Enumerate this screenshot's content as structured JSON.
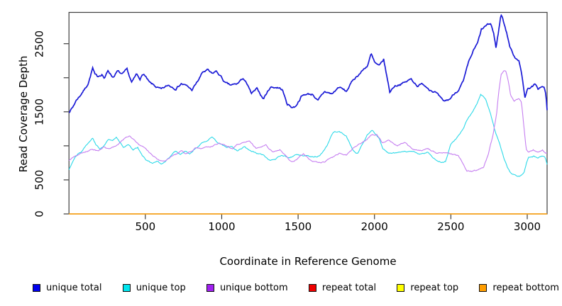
{
  "chart_data": {
    "type": "line",
    "title": "",
    "xlabel": "Coordinate in Reference Genome",
    "ylabel": "Read Coverage Depth",
    "xlim": [
      0,
      3130
    ],
    "ylim": [
      0,
      2960
    ],
    "grid": false,
    "legend_position": "bottom",
    "x_ticks": {
      "values": [
        500,
        1000,
        1500,
        2000,
        2500,
        3000
      ],
      "labels": [
        "500",
        "1000",
        "1500",
        "2000",
        "2500",
        "3000"
      ]
    },
    "y_ticks": {
      "values": [
        0,
        500,
        1000,
        1500,
        2000,
        2500
      ],
      "labels": [
        "0",
        "500",
        "",
        "1500",
        "",
        "2500"
      ]
    },
    "axis_color": "#3d3d3d",
    "background": "#ffffff",
    "series": [
      {
        "name": "unique total",
        "color": "#0000ee",
        "line_color": "#1a1ad6",
        "width": 1.7,
        "jitter": 24,
        "points": [
          [
            0,
            1500
          ],
          [
            25,
            1570
          ],
          [
            50,
            1680
          ],
          [
            70,
            1730
          ],
          [
            90,
            1800
          ],
          [
            110,
            1855
          ],
          [
            125,
            1920
          ],
          [
            140,
            2025
          ],
          [
            155,
            2145
          ],
          [
            170,
            2040
          ],
          [
            186,
            2010
          ],
          [
            217,
            2060
          ],
          [
            233,
            1990
          ],
          [
            256,
            2110
          ],
          [
            287,
            2010
          ],
          [
            318,
            2095
          ],
          [
            349,
            2040
          ],
          [
            380,
            2110
          ],
          [
            411,
            1920
          ],
          [
            442,
            2045
          ],
          [
            465,
            1990
          ],
          [
            488,
            2060
          ],
          [
            527,
            1920
          ],
          [
            566,
            1870
          ],
          [
            605,
            1820
          ],
          [
            651,
            1885
          ],
          [
            698,
            1850
          ],
          [
            736,
            1920
          ],
          [
            775,
            1870
          ],
          [
            806,
            1820
          ],
          [
            845,
            1955
          ],
          [
            876,
            2080
          ],
          [
            907,
            2110
          ],
          [
            938,
            2045
          ],
          [
            961,
            2095
          ],
          [
            992,
            2025
          ],
          [
            1023,
            1920
          ],
          [
            1054,
            1885
          ],
          [
            1101,
            1900
          ],
          [
            1125,
            1970
          ],
          [
            1156,
            1960
          ],
          [
            1194,
            1760
          ],
          [
            1233,
            1830
          ],
          [
            1272,
            1690
          ],
          [
            1318,
            1865
          ],
          [
            1365,
            1860
          ],
          [
            1396,
            1830
          ],
          [
            1427,
            1620
          ],
          [
            1458,
            1570
          ],
          [
            1481,
            1575
          ],
          [
            1520,
            1725
          ],
          [
            1551,
            1760
          ],
          [
            1598,
            1760
          ],
          [
            1629,
            1655
          ],
          [
            1675,
            1795
          ],
          [
            1722,
            1760
          ],
          [
            1768,
            1865
          ],
          [
            1815,
            1795
          ],
          [
            1861,
            1970
          ],
          [
            1892,
            2040
          ],
          [
            1923,
            2110
          ],
          [
            1954,
            2180
          ],
          [
            1978,
            2350
          ],
          [
            2001,
            2215
          ],
          [
            2032,
            2160
          ],
          [
            2060,
            2265
          ],
          [
            2100,
            1790
          ],
          [
            2130,
            1880
          ],
          [
            2160,
            1905
          ],
          [
            2200,
            1930
          ],
          [
            2240,
            1980
          ],
          [
            2280,
            1890
          ],
          [
            2320,
            1905
          ],
          [
            2360,
            1840
          ],
          [
            2400,
            1790
          ],
          [
            2450,
            1640
          ],
          [
            2490,
            1680
          ],
          [
            2520,
            1760
          ],
          [
            2550,
            1830
          ],
          [
            2583,
            1950
          ],
          [
            2614,
            2200
          ],
          [
            2647,
            2390
          ],
          [
            2675,
            2500
          ],
          [
            2700,
            2700
          ],
          [
            2731,
            2760
          ],
          [
            2762,
            2790
          ],
          [
            2780,
            2650
          ],
          [
            2795,
            2440
          ],
          [
            2810,
            2650
          ],
          [
            2828,
            2930
          ],
          [
            2840,
            2870
          ],
          [
            2855,
            2750
          ],
          [
            2870,
            2620
          ],
          [
            2885,
            2470
          ],
          [
            2900,
            2380
          ],
          [
            2920,
            2300
          ],
          [
            2945,
            2270
          ],
          [
            2962,
            2070
          ],
          [
            2985,
            1720
          ],
          [
            3005,
            1850
          ],
          [
            3030,
            1870
          ],
          [
            3050,
            1900
          ],
          [
            3070,
            1830
          ],
          [
            3090,
            1870
          ],
          [
            3110,
            1860
          ],
          [
            3122,
            1750
          ],
          [
            3130,
            1520
          ]
        ]
      },
      {
        "name": "unique top",
        "color": "#00e5ee",
        "line_color": "#2bd9e8",
        "width": 1.1,
        "jitter": 14,
        "points": [
          [
            0,
            645
          ],
          [
            16,
            710
          ],
          [
            39,
            815
          ],
          [
            62,
            885
          ],
          [
            85,
            920
          ],
          [
            108,
            990
          ],
          [
            132,
            1060
          ],
          [
            155,
            1110
          ],
          [
            178,
            1010
          ],
          [
            202,
            955
          ],
          [
            225,
            990
          ],
          [
            256,
            1095
          ],
          [
            287,
            1075
          ],
          [
            310,
            1130
          ],
          [
            333,
            1060
          ],
          [
            357,
            975
          ],
          [
            388,
            1025
          ],
          [
            419,
            940
          ],
          [
            450,
            975
          ],
          [
            481,
            850
          ],
          [
            512,
            780
          ],
          [
            543,
            745
          ],
          [
            574,
            780
          ],
          [
            605,
            730
          ],
          [
            636,
            780
          ],
          [
            667,
            850
          ],
          [
            698,
            920
          ],
          [
            729,
            870
          ],
          [
            760,
            920
          ],
          [
            791,
            885
          ],
          [
            822,
            955
          ],
          [
            853,
            990
          ],
          [
            884,
            1060
          ],
          [
            915,
            1095
          ],
          [
            938,
            1130
          ],
          [
            969,
            1060
          ],
          [
            1000,
            1025
          ],
          [
            1031,
            975
          ],
          [
            1062,
            990
          ],
          [
            1101,
            925
          ],
          [
            1148,
            980
          ],
          [
            1210,
            910
          ],
          [
            1272,
            860
          ],
          [
            1303,
            790
          ],
          [
            1349,
            790
          ],
          [
            1396,
            860
          ],
          [
            1442,
            825
          ],
          [
            1489,
            860
          ],
          [
            1551,
            860
          ],
          [
            1598,
            825
          ],
          [
            1644,
            860
          ],
          [
            1690,
            1000
          ],
          [
            1713,
            1135
          ],
          [
            1737,
            1205
          ],
          [
            1768,
            1205
          ],
          [
            1815,
            1135
          ],
          [
            1861,
            925
          ],
          [
            1892,
            890
          ],
          [
            1923,
            1030
          ],
          [
            1954,
            1170
          ],
          [
            1985,
            1225
          ],
          [
            2010,
            1160
          ],
          [
            2032,
            1100
          ],
          [
            2055,
            960
          ],
          [
            2090,
            900
          ],
          [
            2150,
            900
          ],
          [
            2200,
            930
          ],
          [
            2250,
            905
          ],
          [
            2300,
            880
          ],
          [
            2350,
            900
          ],
          [
            2400,
            790
          ],
          [
            2435,
            760
          ],
          [
            2466,
            770
          ],
          [
            2500,
            1020
          ],
          [
            2535,
            1100
          ],
          [
            2559,
            1160
          ],
          [
            2605,
            1370
          ],
          [
            2636,
            1475
          ],
          [
            2670,
            1620
          ],
          [
            2695,
            1770
          ],
          [
            2714,
            1720
          ],
          [
            2730,
            1670
          ],
          [
            2760,
            1465
          ],
          [
            2784,
            1255
          ],
          [
            2799,
            1155
          ],
          [
            2822,
            1015
          ],
          [
            2846,
            840
          ],
          [
            2869,
            685
          ],
          [
            2892,
            595
          ],
          [
            2920,
            560
          ],
          [
            2950,
            555
          ],
          [
            2978,
            600
          ],
          [
            2993,
            735
          ],
          [
            3008,
            825
          ],
          [
            3040,
            855
          ],
          [
            3070,
            825
          ],
          [
            3100,
            855
          ],
          [
            3118,
            840
          ],
          [
            3130,
            720
          ]
        ]
      },
      {
        "name": "unique bottom",
        "color": "#a020f0",
        "line_color": "#c57ef0",
        "width": 1.1,
        "jitter": 14,
        "points": [
          [
            0,
            785
          ],
          [
            31,
            835
          ],
          [
            70,
            885
          ],
          [
            108,
            905
          ],
          [
            147,
            955
          ],
          [
            186,
            920
          ],
          [
            225,
            975
          ],
          [
            264,
            940
          ],
          [
            302,
            990
          ],
          [
            333,
            1045
          ],
          [
            364,
            1110
          ],
          [
            395,
            1150
          ],
          [
            426,
            1095
          ],
          [
            457,
            1025
          ],
          [
            488,
            975
          ],
          [
            519,
            920
          ],
          [
            550,
            850
          ],
          [
            581,
            800
          ],
          [
            612,
            765
          ],
          [
            643,
            800
          ],
          [
            674,
            850
          ],
          [
            705,
            885
          ],
          [
            736,
            920
          ],
          [
            767,
            885
          ],
          [
            798,
            920
          ],
          [
            829,
            975
          ],
          [
            860,
            955
          ],
          [
            891,
            990
          ],
          [
            922,
            975
          ],
          [
            953,
            1010
          ],
          [
            984,
            1045
          ],
          [
            1015,
            1025
          ],
          [
            1046,
            990
          ],
          [
            1070,
            960
          ],
          [
            1101,
            1020
          ],
          [
            1148,
            1065
          ],
          [
            1179,
            1065
          ],
          [
            1225,
            960
          ],
          [
            1287,
            1015
          ],
          [
            1334,
            910
          ],
          [
            1380,
            945
          ],
          [
            1427,
            825
          ],
          [
            1458,
            755
          ],
          [
            1504,
            825
          ],
          [
            1535,
            890
          ],
          [
            1582,
            790
          ],
          [
            1629,
            755
          ],
          [
            1675,
            755
          ],
          [
            1722,
            825
          ],
          [
            1768,
            890
          ],
          [
            1815,
            860
          ],
          [
            1861,
            960
          ],
          [
            1907,
            1030
          ],
          [
            1954,
            1100
          ],
          [
            1985,
            1170
          ],
          [
            2016,
            1170
          ],
          [
            2050,
            1050
          ],
          [
            2090,
            1080
          ],
          [
            2150,
            1000
          ],
          [
            2200,
            1050
          ],
          [
            2250,
            950
          ],
          [
            2300,
            930
          ],
          [
            2350,
            950
          ],
          [
            2400,
            900
          ],
          [
            2450,
            900
          ],
          [
            2500,
            880
          ],
          [
            2550,
            850
          ],
          [
            2605,
            640
          ],
          [
            2640,
            620
          ],
          [
            2680,
            650
          ],
          [
            2714,
            685
          ],
          [
            2745,
            875
          ],
          [
            2776,
            1155
          ],
          [
            2799,
            1465
          ],
          [
            2815,
            1815
          ],
          [
            2830,
            2040
          ],
          [
            2846,
            2090
          ],
          [
            2861,
            2090
          ],
          [
            2877,
            1950
          ],
          [
            2892,
            1745
          ],
          [
            2915,
            1650
          ],
          [
            2946,
            1690
          ],
          [
            2962,
            1650
          ],
          [
            2978,
            1290
          ],
          [
            2993,
            950
          ],
          [
            3008,
            900
          ],
          [
            3040,
            930
          ],
          [
            3070,
            900
          ],
          [
            3100,
            940
          ],
          [
            3118,
            905
          ],
          [
            3130,
            900
          ]
        ]
      },
      {
        "name": "repeat total",
        "color": "#ee0000",
        "line_color": "#ee0000",
        "width": 1.1,
        "jitter": 0,
        "points": [
          [
            0,
            0
          ],
          [
            3130,
            0
          ]
        ]
      },
      {
        "name": "repeat top",
        "color": "#ffff00",
        "line_color": "#ffff00",
        "width": 1.1,
        "jitter": 0,
        "points": [
          [
            0,
            0
          ],
          [
            3130,
            0
          ]
        ]
      },
      {
        "name": "repeat bottom",
        "color": "#ff9d00",
        "line_color": "#ff9d00",
        "width": 1.5,
        "jitter": 0,
        "points": [
          [
            0,
            0
          ],
          [
            3130,
            0
          ]
        ]
      }
    ]
  }
}
